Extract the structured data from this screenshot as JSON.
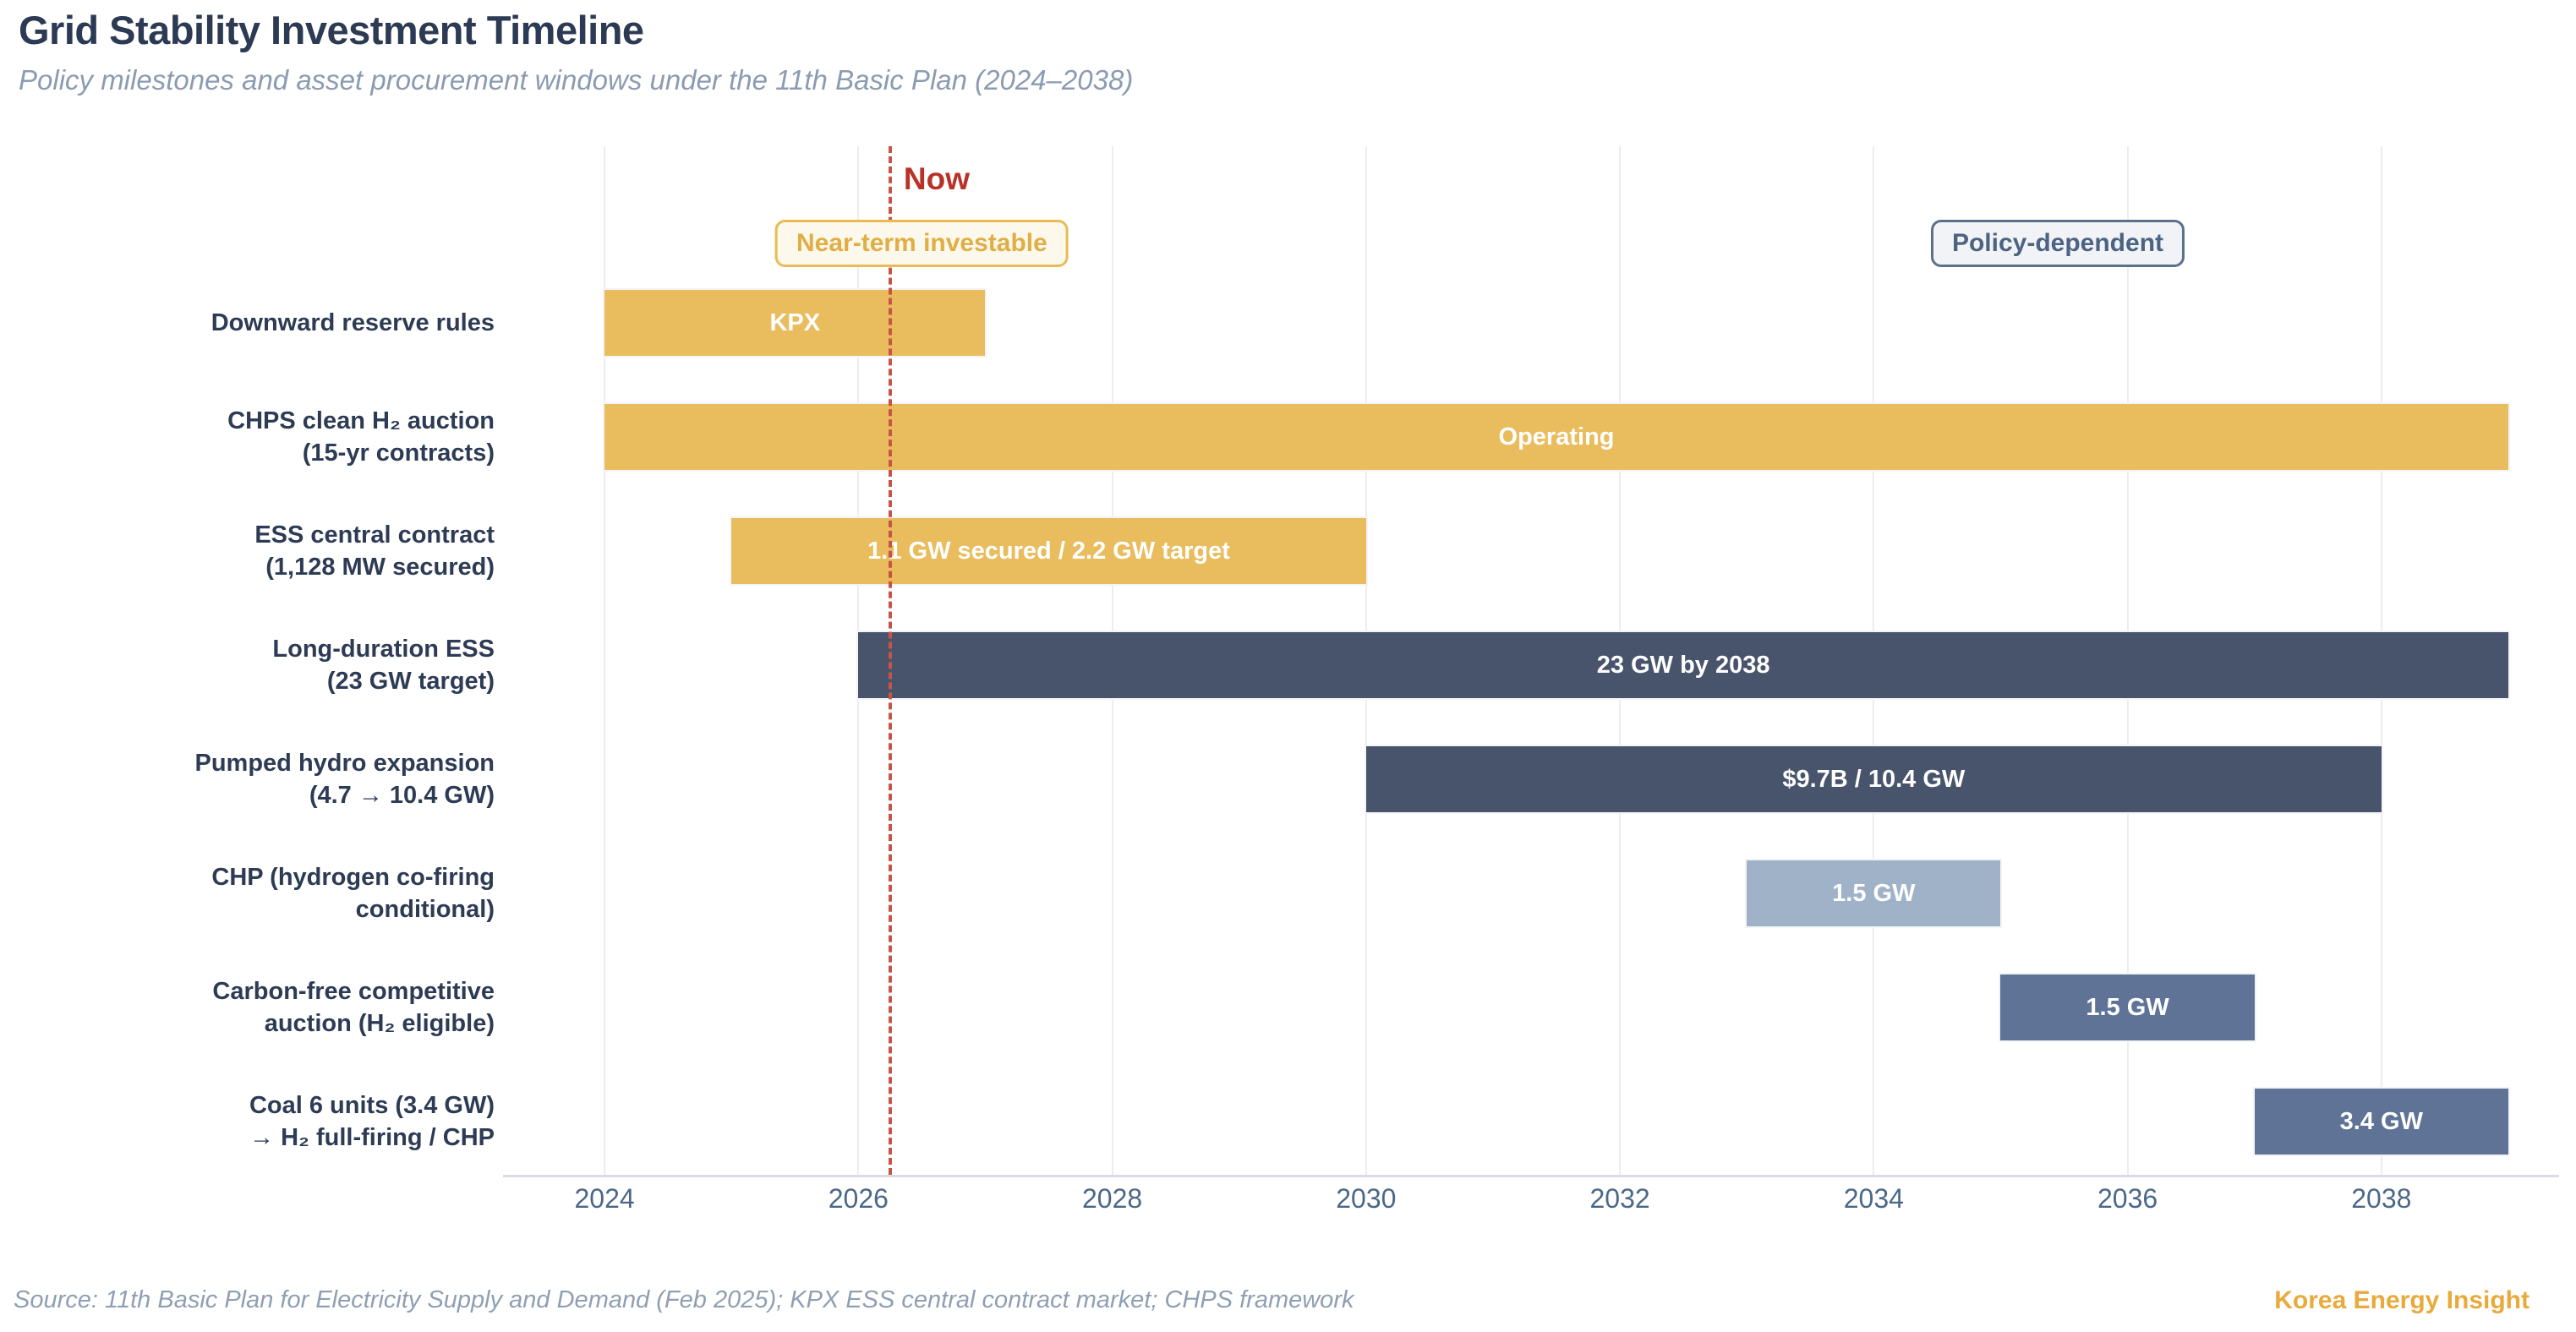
{
  "header": {
    "title": "Grid Stability Investment Timeline",
    "subtitle": "Policy milestones and asset procurement windows under the 11th Basic Plan (2024–2038)"
  },
  "chart_data": {
    "type": "bar",
    "subtype": "gantt-timeline",
    "title": "Grid Stability Investment Timeline",
    "xlabel": "",
    "ylabel": "",
    "x_axis": {
      "ticks": [
        2024,
        2026,
        2028,
        2030,
        2032,
        2034,
        2036,
        2038
      ],
      "range": [
        2023.2,
        2039.4
      ],
      "grid": true
    },
    "now_marker": {
      "label": "Now",
      "year": 2026.25
    },
    "group_labels": [
      {
        "label": "Near-term investable",
        "year": 2026.5,
        "style": "gold"
      },
      {
        "label": "Policy-dependent",
        "year": 2035.45,
        "style": "slate"
      }
    ],
    "tasks": [
      {
        "name": [
          "Downward reserve rules"
        ],
        "start": 2024,
        "end": 2027,
        "bar_label": "KPX",
        "color_key": "gold"
      },
      {
        "name": [
          "CHPS clean H₂ auction",
          "(15-yr contracts)"
        ],
        "start": 2024,
        "end": 2039,
        "bar_label": "Operating",
        "color_key": "gold"
      },
      {
        "name": [
          "ESS central contract",
          "(1,128 MW secured)"
        ],
        "start": 2025,
        "end": 2030,
        "bar_label": "1.1 GW secured / 2.2 GW target",
        "color_key": "gold"
      },
      {
        "name": [
          "Long-duration ESS",
          "(23 GW target)"
        ],
        "start": 2026,
        "end": 2039,
        "bar_label": "23 GW by 2038",
        "color_key": "dark"
      },
      {
        "name": [
          "Pumped hydro expansion",
          "(4.7 → 10.4 GW)"
        ],
        "start": 2030,
        "end": 2038,
        "bar_label": "$9.7B / 10.4 GW",
        "color_key": "dark"
      },
      {
        "name": [
          "CHP (hydrogen co-firing",
          "conditional)"
        ],
        "start": 2033,
        "end": 2035,
        "bar_label": "1.5 GW",
        "color_key": "light"
      },
      {
        "name": [
          "Carbon-free competitive",
          "auction (H₂ eligible)"
        ],
        "start": 2035,
        "end": 2037,
        "bar_label": "1.5 GW",
        "color_key": "medium"
      },
      {
        "name": [
          "Coal 6 units (3.4 GW)",
          "→ H₂ full-firing / CHP"
        ],
        "start": 2037,
        "end": 2039,
        "bar_label": "3.4 GW",
        "color_key": "medium"
      }
    ],
    "colors": {
      "gold": "#e9bd5e",
      "dark": "#48546c",
      "light": "#9fb2c7",
      "medium": "#5f7397",
      "bar_label_text": "#ffffff",
      "now_line": "#c65548",
      "now_text": "#b93127",
      "grid": "#ededf0",
      "axis_line": "#d9dce1",
      "tick_text": "#4a6888",
      "row_label_text": "#2d3b55"
    },
    "legend_position": "top-inside"
  },
  "footer": {
    "source": "Source: 11th Basic Plan for Electricity Supply and Demand (Feb 2025); KPX ESS central contract market; CHPS framework",
    "brand": "Korea Energy Insight"
  }
}
